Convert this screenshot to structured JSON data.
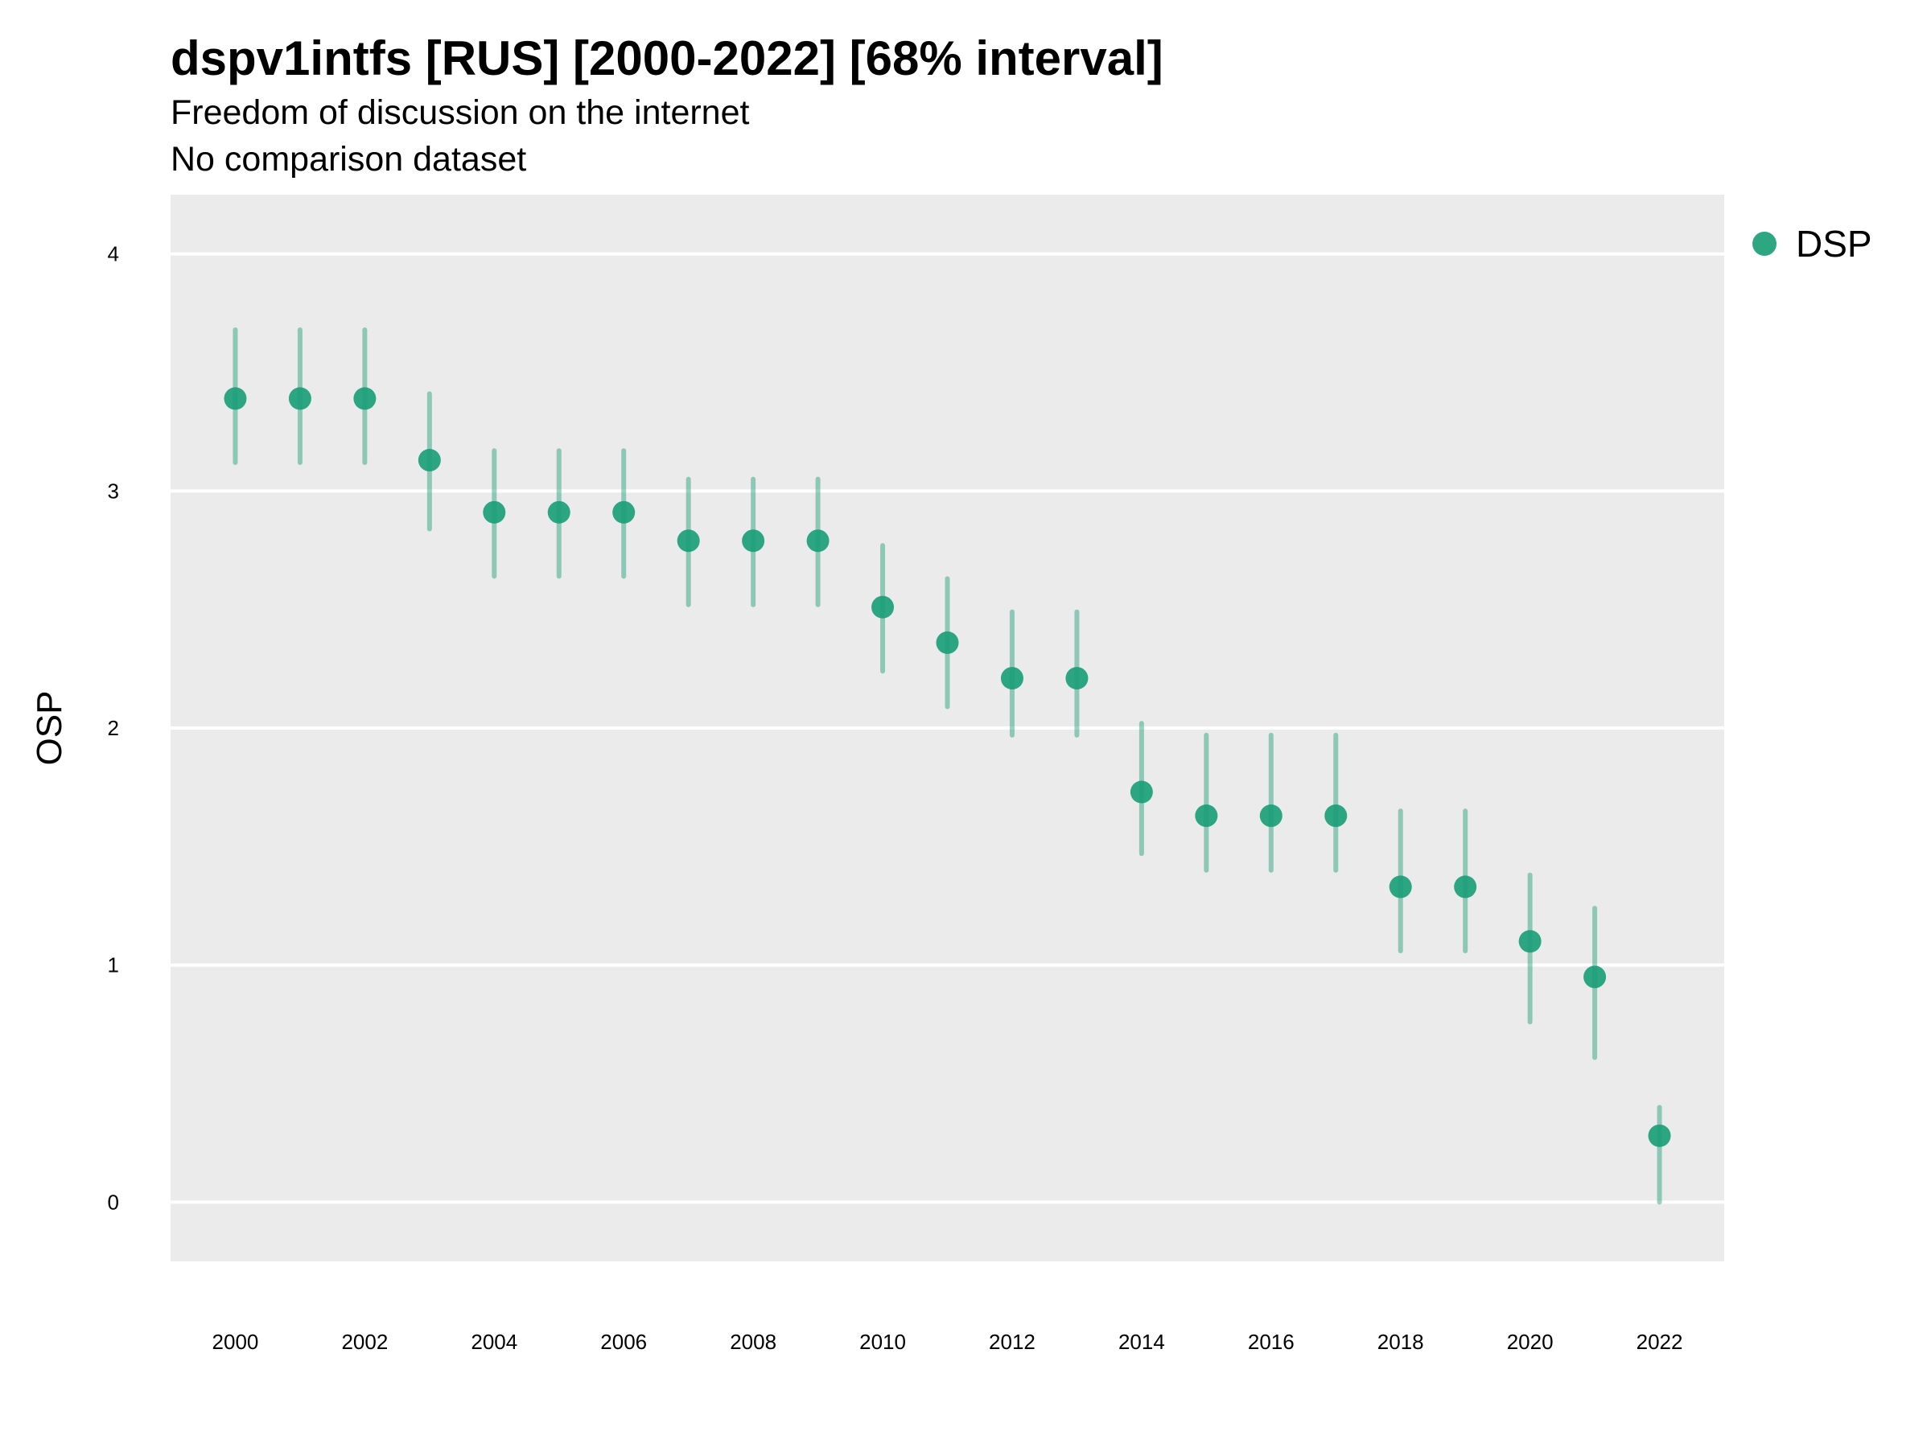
{
  "chart_data": {
    "type": "scatter",
    "title": "dspv1intfs [RUS] [2000-2022] [68% interval]",
    "subtitle": "Freedom of discussion on the internet",
    "caption": "No comparison dataset",
    "ylabel": "OSP",
    "xlabel": "",
    "xlim": [
      1999,
      2023
    ],
    "ylim": [
      -0.25,
      4.25
    ],
    "x_ticks": [
      2000,
      2002,
      2004,
      2006,
      2008,
      2010,
      2012,
      2014,
      2016,
      2018,
      2020,
      2022
    ],
    "y_ticks": [
      0,
      1,
      2,
      3,
      4
    ],
    "grid": "horizontal major",
    "legend_position": "right-top",
    "series": [
      {
        "name": "DSP",
        "color": "#1b9e77",
        "points": [
          {
            "x": 2000,
            "y": 3.39,
            "low": 3.12,
            "high": 3.68
          },
          {
            "x": 2001,
            "y": 3.39,
            "low": 3.12,
            "high": 3.68
          },
          {
            "x": 2002,
            "y": 3.39,
            "low": 3.12,
            "high": 3.68
          },
          {
            "x": 2003,
            "y": 3.13,
            "low": 2.84,
            "high": 3.41
          },
          {
            "x": 2004,
            "y": 2.91,
            "low": 2.64,
            "high": 3.17
          },
          {
            "x": 2005,
            "y": 2.91,
            "low": 2.64,
            "high": 3.17
          },
          {
            "x": 2006,
            "y": 2.91,
            "low": 2.64,
            "high": 3.17
          },
          {
            "x": 2007,
            "y": 2.79,
            "low": 2.52,
            "high": 3.05
          },
          {
            "x": 2008,
            "y": 2.79,
            "low": 2.52,
            "high": 3.05
          },
          {
            "x": 2009,
            "y": 2.79,
            "low": 2.52,
            "high": 3.05
          },
          {
            "x": 2010,
            "y": 2.51,
            "low": 2.24,
            "high": 2.77
          },
          {
            "x": 2011,
            "y": 2.36,
            "low": 2.09,
            "high": 2.63
          },
          {
            "x": 2012,
            "y": 2.21,
            "low": 1.97,
            "high": 2.49
          },
          {
            "x": 2013,
            "y": 2.21,
            "low": 1.97,
            "high": 2.49
          },
          {
            "x": 2014,
            "y": 1.73,
            "low": 1.47,
            "high": 2.02
          },
          {
            "x": 2015,
            "y": 1.63,
            "low": 1.4,
            "high": 1.97
          },
          {
            "x": 2016,
            "y": 1.63,
            "low": 1.4,
            "high": 1.97
          },
          {
            "x": 2017,
            "y": 1.63,
            "low": 1.4,
            "high": 1.97
          },
          {
            "x": 2018,
            "y": 1.33,
            "low": 1.06,
            "high": 1.65
          },
          {
            "x": 2019,
            "y": 1.33,
            "low": 1.06,
            "high": 1.65
          },
          {
            "x": 2020,
            "y": 1.1,
            "low": 0.76,
            "high": 1.38
          },
          {
            "x": 2021,
            "y": 0.95,
            "low": 0.61,
            "high": 1.24
          },
          {
            "x": 2022,
            "y": 0.28,
            "low": 0.0,
            "high": 0.4
          }
        ]
      }
    ]
  }
}
